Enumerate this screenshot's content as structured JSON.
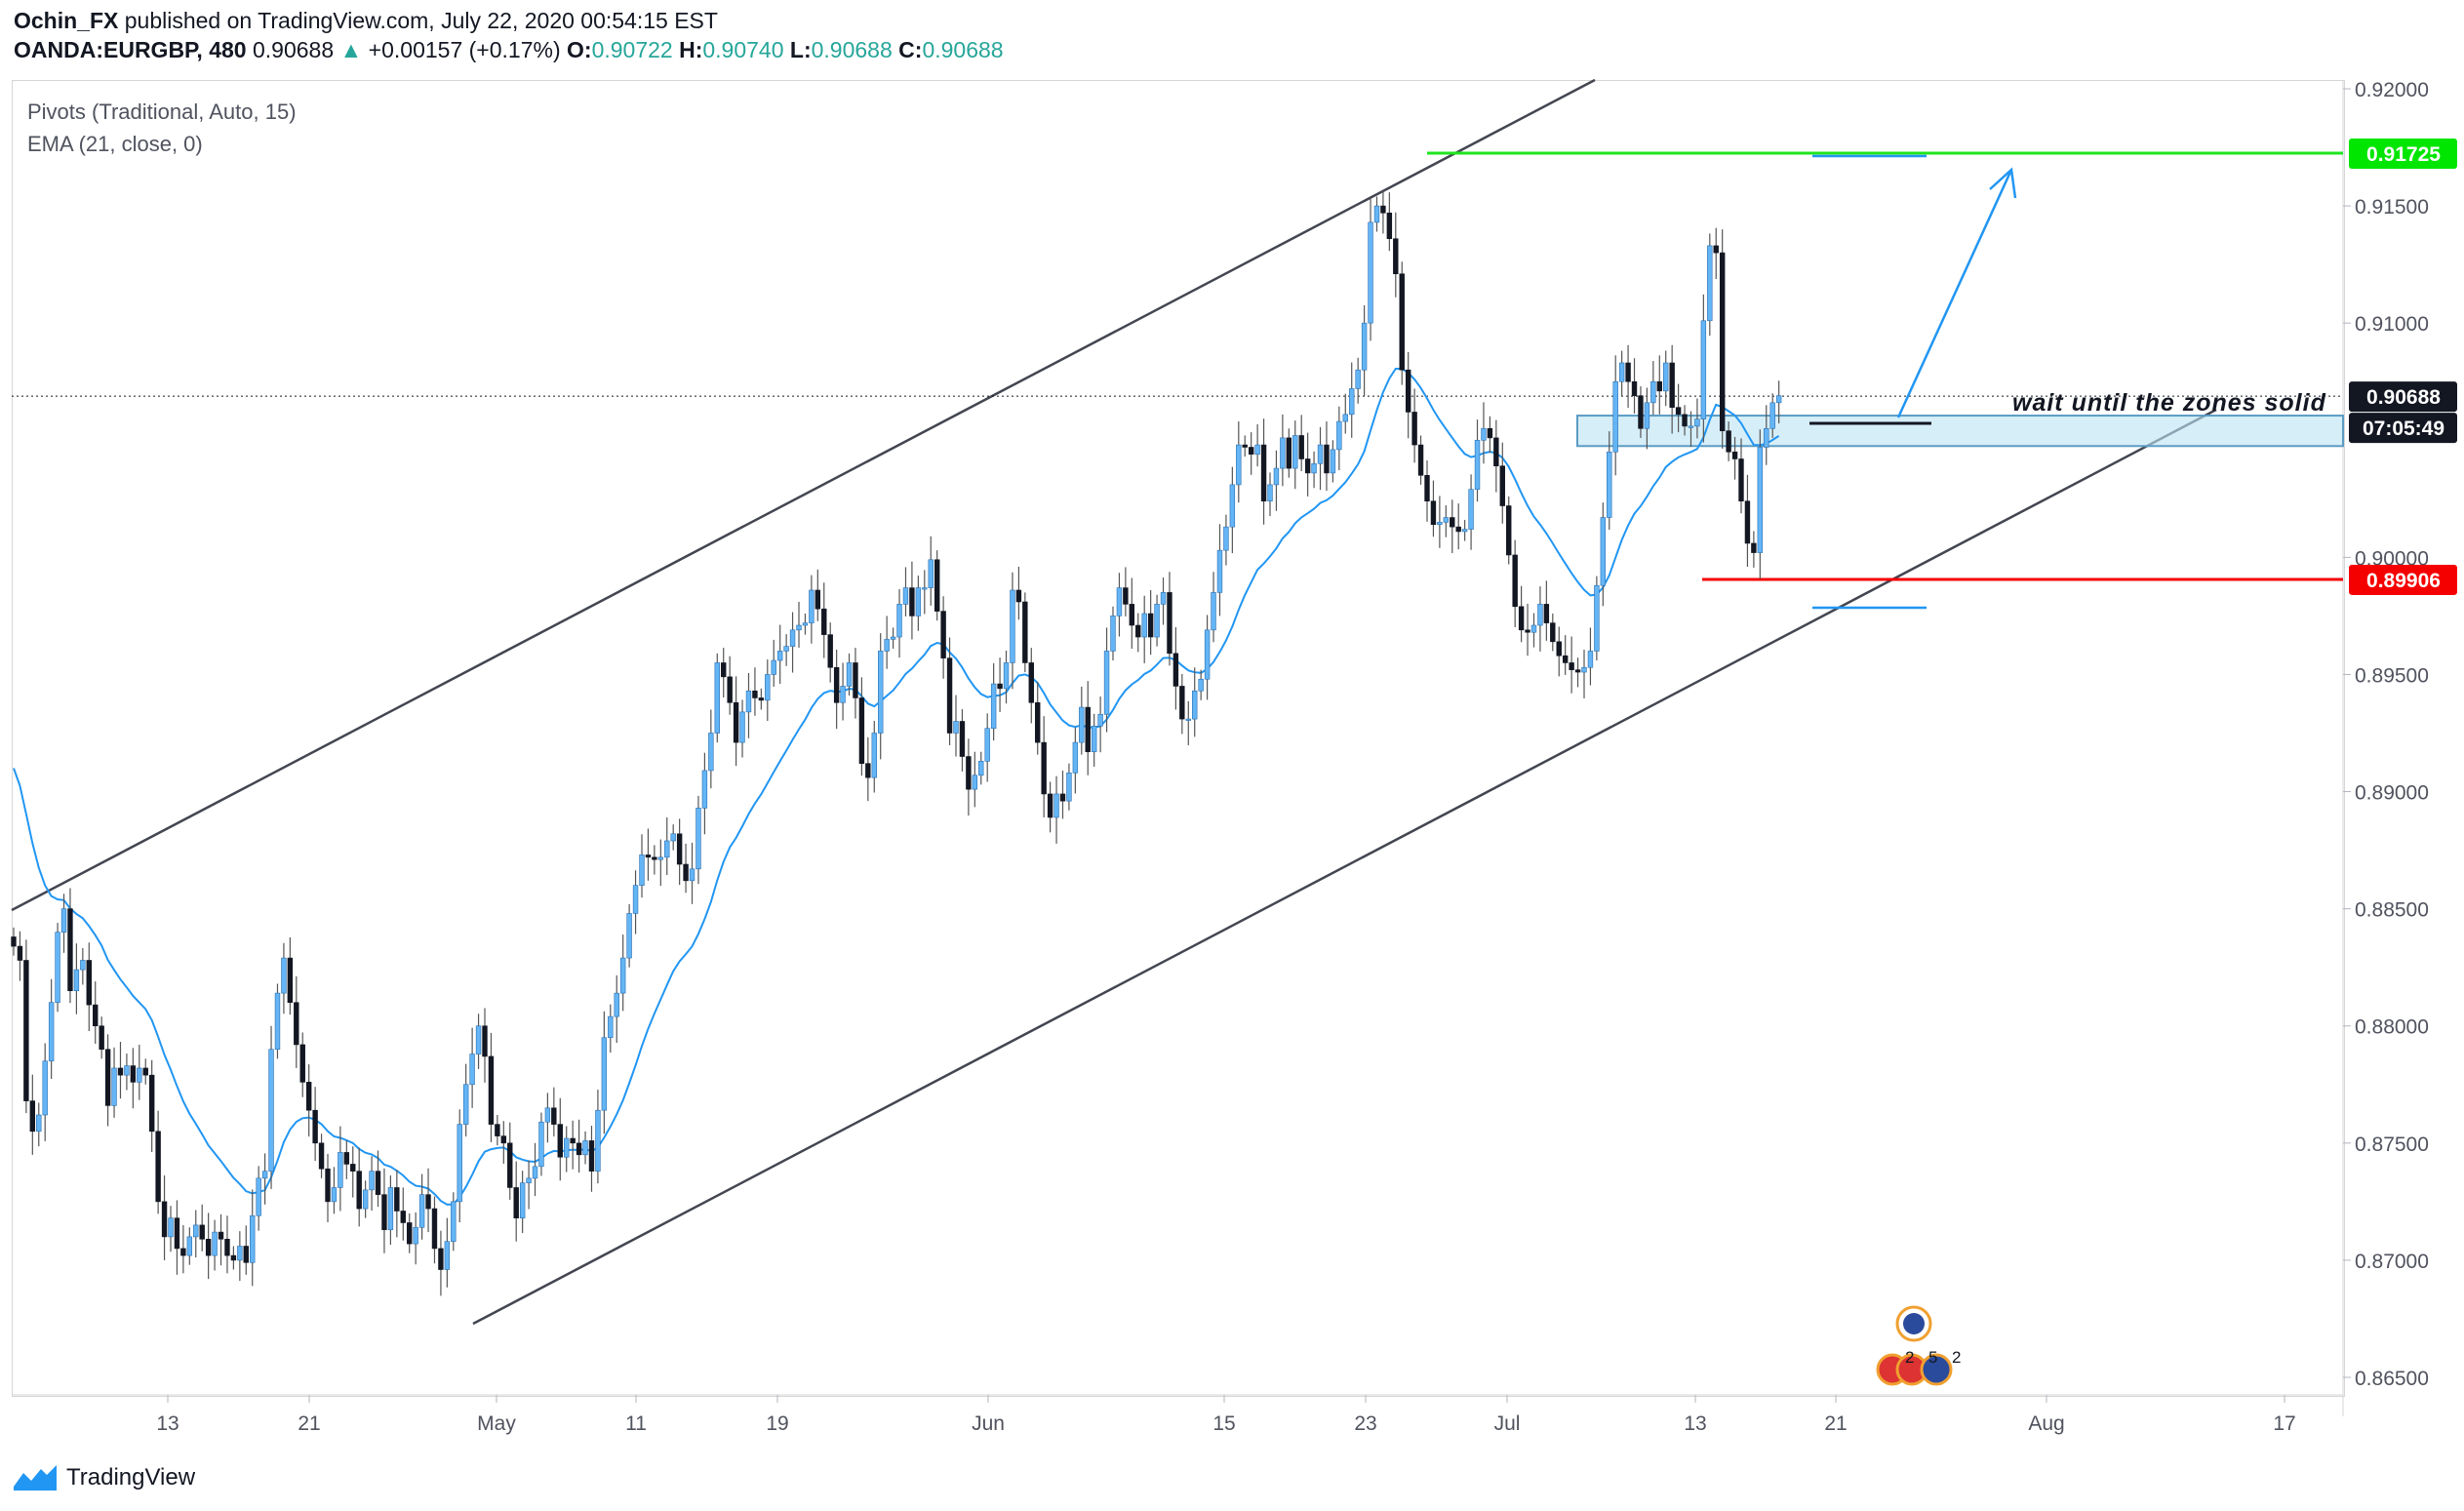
{
  "header": {
    "author": "Ochin_FX",
    "published": " published on TradingView.com, July 22, 2020 00:54:15 EST",
    "symbol": "OANDA:EURGBP, 480",
    "last": "0.90688",
    "change": "+0.00157 (+0.17%)",
    "o_label": "O:",
    "o_value": "0.90722",
    "h_label": "H:",
    "h_value": "0.90740",
    "l_label": "L:",
    "l_value": "0.90688",
    "c_label": "C:",
    "c_value": "0.90688",
    "up_arrow": "▲"
  },
  "indicators": {
    "pivots": "Pivots (Traditional, Auto, 15)",
    "ema": "EMA (21, close, 0)"
  },
  "annotation": "wait until the zones solid",
  "price_badges": {
    "target": {
      "text": "0.91725",
      "color": "#00e600"
    },
    "last": {
      "text": "0.90688",
      "color": "#131722"
    },
    "timer": {
      "text": "07:05:49",
      "color": "#131722"
    },
    "stop": {
      "text": "0.89906",
      "color": "#f50000"
    }
  },
  "footer": {
    "brand": "TradingView",
    "icon": "tradingview-logo-icon"
  },
  "events": {
    "eu_icon": "eu-flag-icon",
    "uk_icon": "uk-flag-icon",
    "counts": [
      "2",
      "5",
      "2"
    ]
  },
  "chart_data": {
    "type": "candlestick",
    "symbol": "OANDA:EURGBP",
    "interval": "480",
    "x_ticks": [
      "13",
      "21",
      "May",
      "11",
      "19",
      "Jun",
      "15",
      "23",
      "Jul",
      "13",
      "21",
      "Aug",
      "17"
    ],
    "y_ticks": [
      "0.92000",
      "0.91500",
      "0.91000",
      "0.90000",
      "0.89500",
      "0.89000",
      "0.88500",
      "0.88000",
      "0.87500",
      "0.87000",
      "0.86500"
    ],
    "ylim": [
      0.8645,
      0.9205
    ],
    "levels": {
      "target": 0.91725,
      "stop": 0.89906,
      "last": 0.90688,
      "zone": [
        0.905,
        0.9058
      ]
    },
    "series": [
      {
        "type": "close",
        "values": [
          0.8834,
          0.8828,
          0.8768,
          0.8755,
          0.8762,
          0.8785,
          0.881,
          0.884,
          0.885,
          0.8815,
          0.8824,
          0.8828,
          0.8809,
          0.88,
          0.879,
          0.8766,
          0.8782,
          0.8779,
          0.8783,
          0.8776,
          0.8782,
          0.8779,
          0.8755,
          0.8725,
          0.871,
          0.8718,
          0.8705,
          0.8702,
          0.871,
          0.8715,
          0.8709,
          0.8702,
          0.8712,
          0.8709,
          0.8702,
          0.87,
          0.8706,
          0.8699,
          0.8719,
          0.8735,
          0.8738,
          0.879,
          0.8814,
          0.8829,
          0.881,
          0.8792,
          0.8776,
          0.8764,
          0.875,
          0.8739,
          0.8725,
          0.8731,
          0.8746,
          0.8741,
          0.8738,
          0.8722,
          0.873,
          0.8738,
          0.8728,
          0.8713,
          0.8731,
          0.8721,
          0.8716,
          0.8707,
          0.8714,
          0.8728,
          0.8722,
          0.8705,
          0.8696,
          0.8708,
          0.8725,
          0.8758,
          0.8775,
          0.8788,
          0.88,
          0.8787,
          0.8758,
          0.8753,
          0.875,
          0.8731,
          0.8718,
          0.8733,
          0.8735,
          0.874,
          0.8759,
          0.8765,
          0.8758,
          0.8744,
          0.8752,
          0.875,
          0.8745,
          0.8751,
          0.8738,
          0.8764,
          0.8795,
          0.8804,
          0.8814,
          0.8829,
          0.8848,
          0.886,
          0.8873,
          0.8872,
          0.8871,
          0.8872,
          0.8879,
          0.8882,
          0.8869,
          0.8862,
          0.8867,
          0.8893,
          0.8909,
          0.8925,
          0.8955,
          0.8949,
          0.8938,
          0.8921,
          0.8934,
          0.8943,
          0.894,
          0.8939,
          0.895,
          0.8956,
          0.896,
          0.8962,
          0.8969,
          0.8971,
          0.8972,
          0.8986,
          0.8978,
          0.8967,
          0.8953,
          0.8938,
          0.8945,
          0.8955,
          0.894,
          0.8912,
          0.8906,
          0.8925,
          0.896,
          0.8965,
          0.8966,
          0.898,
          0.8987,
          0.8975,
          0.8987,
          0.8987,
          0.8999,
          0.8977,
          0.8957,
          0.8925,
          0.893,
          0.8915,
          0.8901,
          0.8907,
          0.8913,
          0.8927,
          0.8946,
          0.8944,
          0.8955,
          0.8986,
          0.8981,
          0.8955,
          0.8938,
          0.8921,
          0.8899,
          0.8889,
          0.8899,
          0.8896,
          0.8908,
          0.8921,
          0.8936,
          0.8917,
          0.8928,
          0.8933,
          0.896,
          0.8975,
          0.8987,
          0.898,
          0.8971,
          0.8966,
          0.8976,
          0.8966,
          0.898,
          0.8985,
          0.8959,
          0.8945,
          0.8931,
          0.8931,
          0.8943,
          0.8948,
          0.8969,
          0.8985,
          0.9003,
          0.9013,
          0.9031,
          0.9048,
          0.9047,
          0.9044,
          0.9048,
          0.9024,
          0.9031,
          0.9038,
          0.9051,
          0.9038,
          0.9052,
          0.9042,
          0.9036,
          0.904,
          0.9048,
          0.9036,
          0.9046,
          0.9058,
          0.9061,
          0.9072,
          0.908,
          0.91,
          0.9143,
          0.915,
          0.9147,
          0.9136,
          0.9121,
          0.908,
          0.9062,
          0.9048,
          0.9035,
          0.9024,
          0.9014,
          0.9015,
          0.9017,
          0.9013,
          0.9011,
          0.9012,
          0.9029,
          0.905,
          0.9055,
          0.9051,
          0.9039,
          0.9022,
          0.9001,
          0.8979,
          0.8969,
          0.8968,
          0.8971,
          0.898,
          0.8972,
          0.8964,
          0.8958,
          0.8955,
          0.8952,
          0.8951,
          0.8953,
          0.896,
          0.8988,
          0.9017,
          0.9045,
          0.9075,
          0.9083,
          0.9075,
          0.9069,
          0.9055,
          0.9066,
          0.9075,
          0.9071,
          0.9083,
          0.9064,
          0.9061,
          0.9056,
          0.9056,
          0.9059,
          0.9101,
          0.9133,
          0.913,
          0.9054,
          0.9045,
          0.9042,
          0.9024,
          0.9006,
          0.9002,
          0.9047,
          0.9055,
          0.9066,
          0.9069
        ]
      }
    ]
  }
}
